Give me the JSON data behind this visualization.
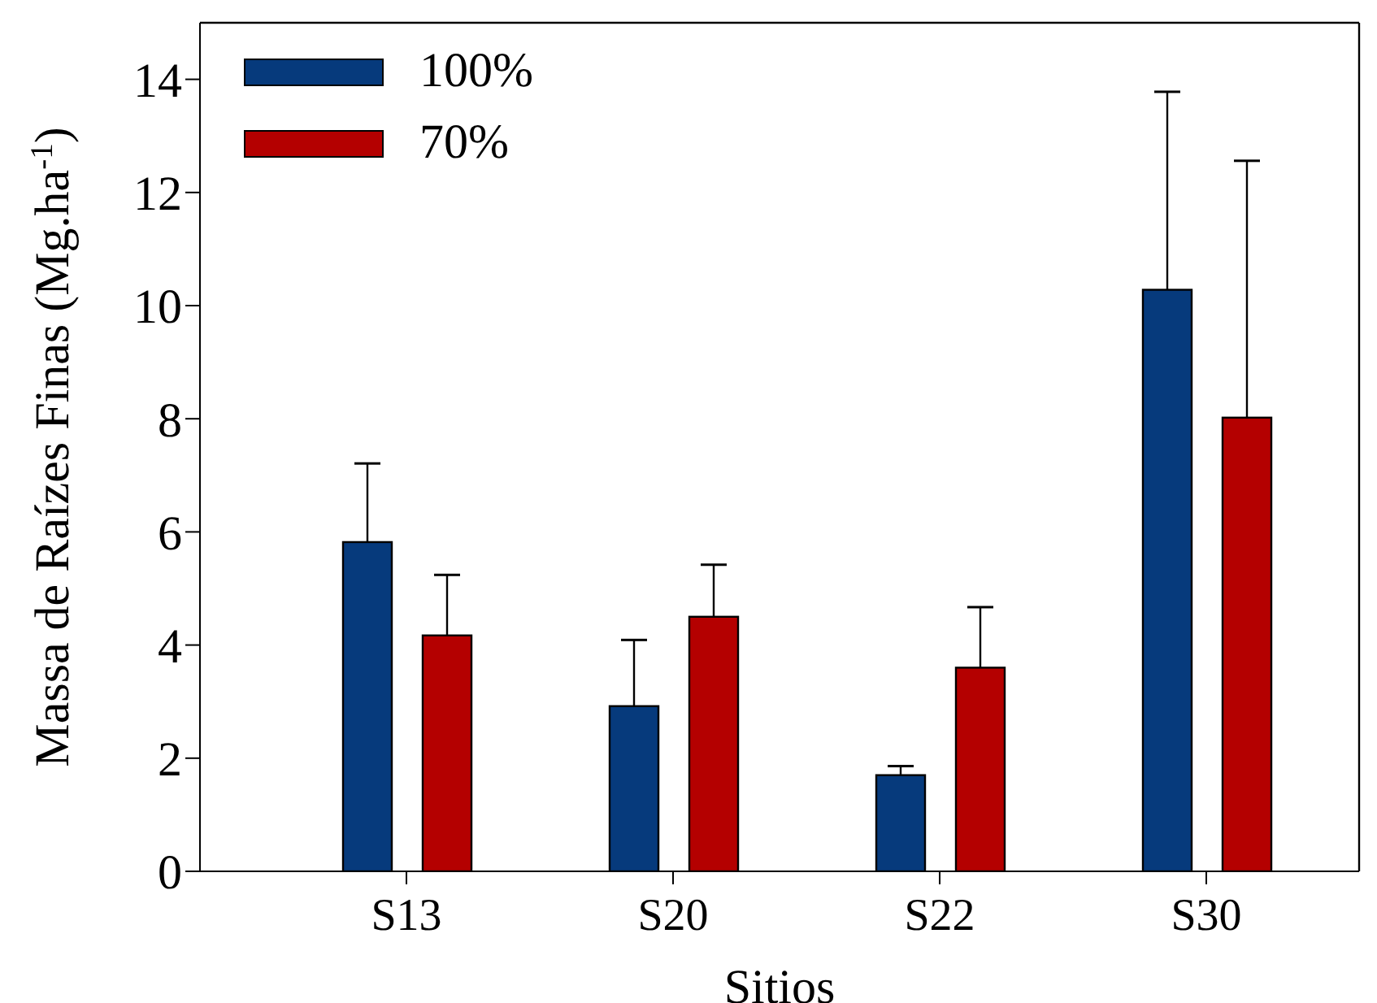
{
  "chart_data": {
    "type": "bar",
    "xlabel": "Sitios",
    "ylabel": "Massa de Raízes Finas (Mg.ha$^{-1}$)",
    "categories": [
      "S13",
      "S20",
      "S22",
      "S30"
    ],
    "series": [
      {
        "name": "100%",
        "color": "#063a7c",
        "values": [
          5.82,
          2.92,
          1.7,
          10.28
        ],
        "errors": [
          [
            5.82,
            7.21
          ],
          [
            2.92,
            4.09
          ],
          [
            1.7,
            1.86
          ],
          [
            10.28,
            13.78
          ]
        ]
      },
      {
        "name": "70%",
        "color": "#b40000",
        "values": [
          4.17,
          4.5,
          3.6,
          8.02
        ],
        "errors": [
          [
            4.17,
            5.24
          ],
          [
            4.5,
            5.42
          ],
          [
            3.6,
            4.67
          ],
          [
            8.02,
            12.56
          ]
        ]
      }
    ],
    "ylim": [
      0,
      15
    ],
    "yticks": [
      0,
      2,
      4,
      6,
      8,
      10,
      12,
      14
    ],
    "grid": false,
    "legend": "top left"
  }
}
